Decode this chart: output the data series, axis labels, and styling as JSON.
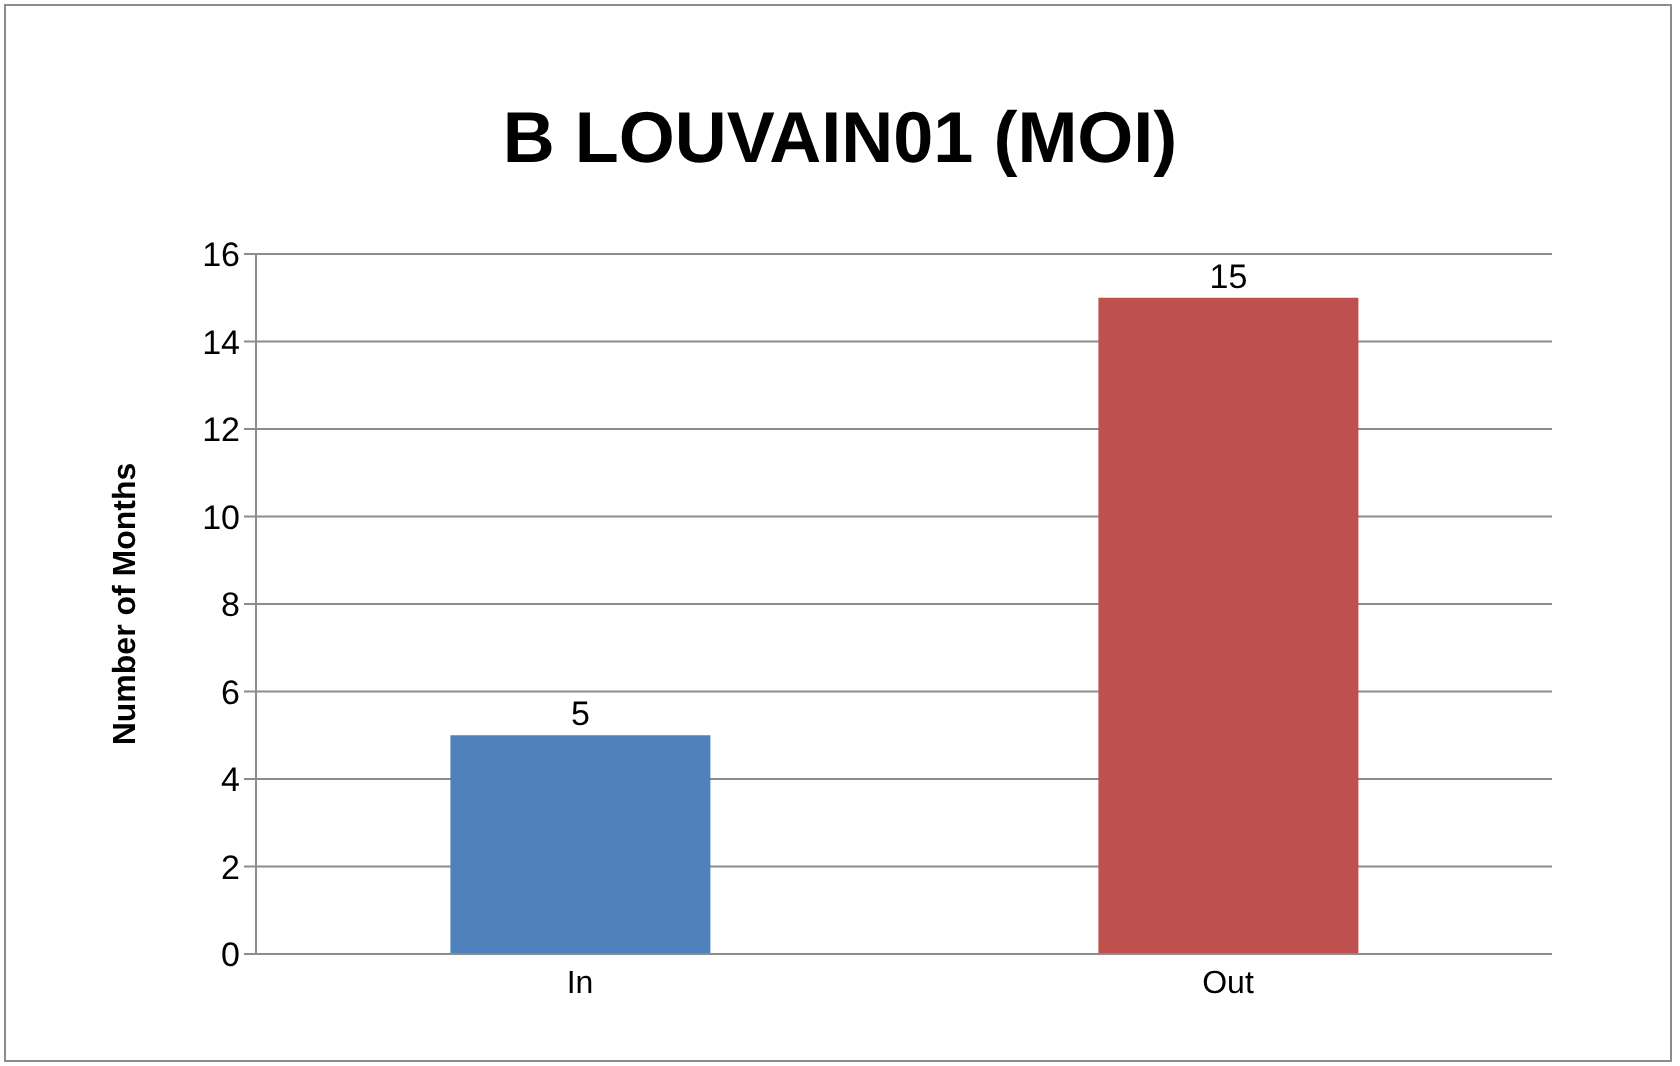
{
  "chart_data": {
    "type": "bar",
    "title": "B LOUVAIN01 (MOI)",
    "ylabel": "Number of Months",
    "categories": [
      "In",
      "Out"
    ],
    "values": [
      5,
      15
    ],
    "colors": [
      "#4f81bd",
      "#c0504d"
    ],
    "ylim": [
      0,
      16
    ],
    "yticks": [
      0,
      2,
      4,
      6,
      8,
      10,
      12,
      14,
      16
    ],
    "grid": "y",
    "data_labels": true
  }
}
